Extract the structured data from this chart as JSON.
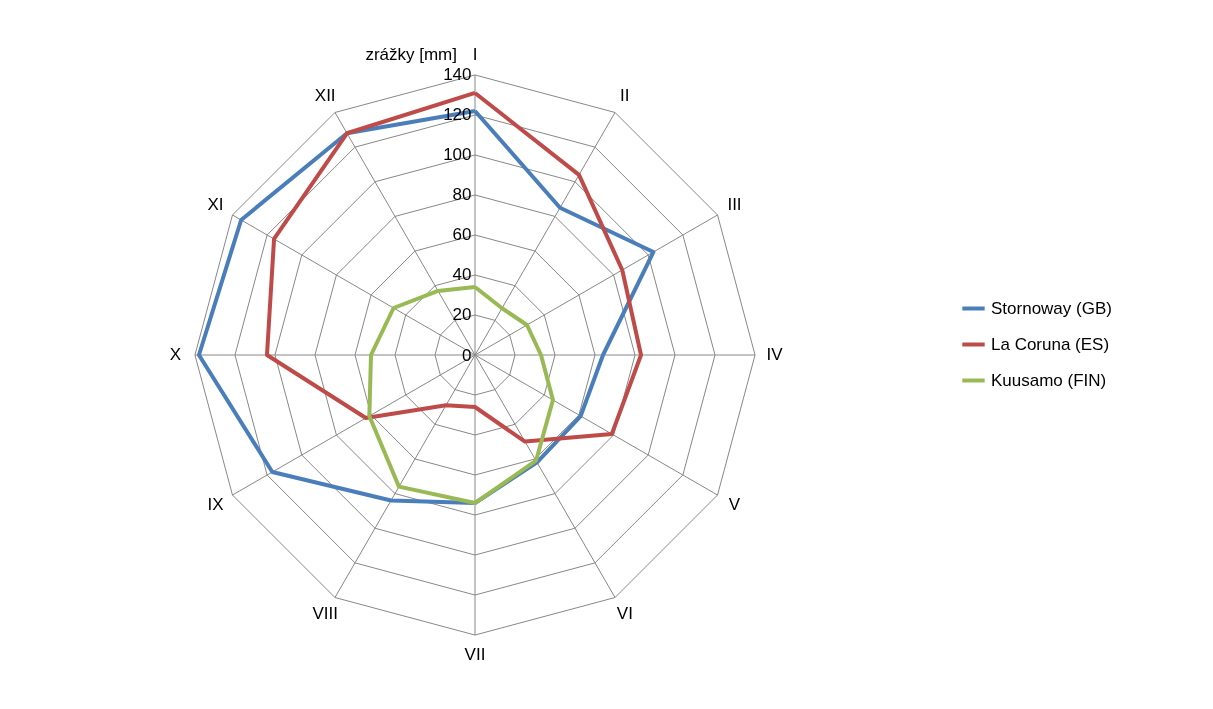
{
  "chart_data": {
    "type": "radar",
    "ylabel": "zrážky [mm]",
    "categories": [
      "I",
      "II",
      "III",
      "IV",
      "V",
      "VI",
      "VII",
      "VIII",
      "IX",
      "X",
      "XI",
      "XII"
    ],
    "series": [
      {
        "name": "Stornoway (GB)",
        "color": "#4a7ebb",
        "values": [
          122,
          85,
          103,
          64,
          61,
          62,
          74,
          84,
          117,
          138,
          135,
          128
        ]
      },
      {
        "name": "La Coruna (ES)",
        "color": "#be4b48",
        "values": [
          131,
          104,
          85,
          83,
          79,
          50,
          26,
          29,
          63,
          104,
          116,
          128
        ]
      },
      {
        "name": "Kuusamo (FIN)",
        "color": "#98b954",
        "values": [
          34,
          27,
          30,
          33,
          45,
          61,
          74,
          76,
          61,
          52,
          47,
          37
        ]
      }
    ],
    "ylim": [
      0,
      140
    ],
    "yticks": [
      0,
      20,
      40,
      60,
      80,
      100,
      120,
      140
    ],
    "grid": true,
    "legend": "right"
  }
}
